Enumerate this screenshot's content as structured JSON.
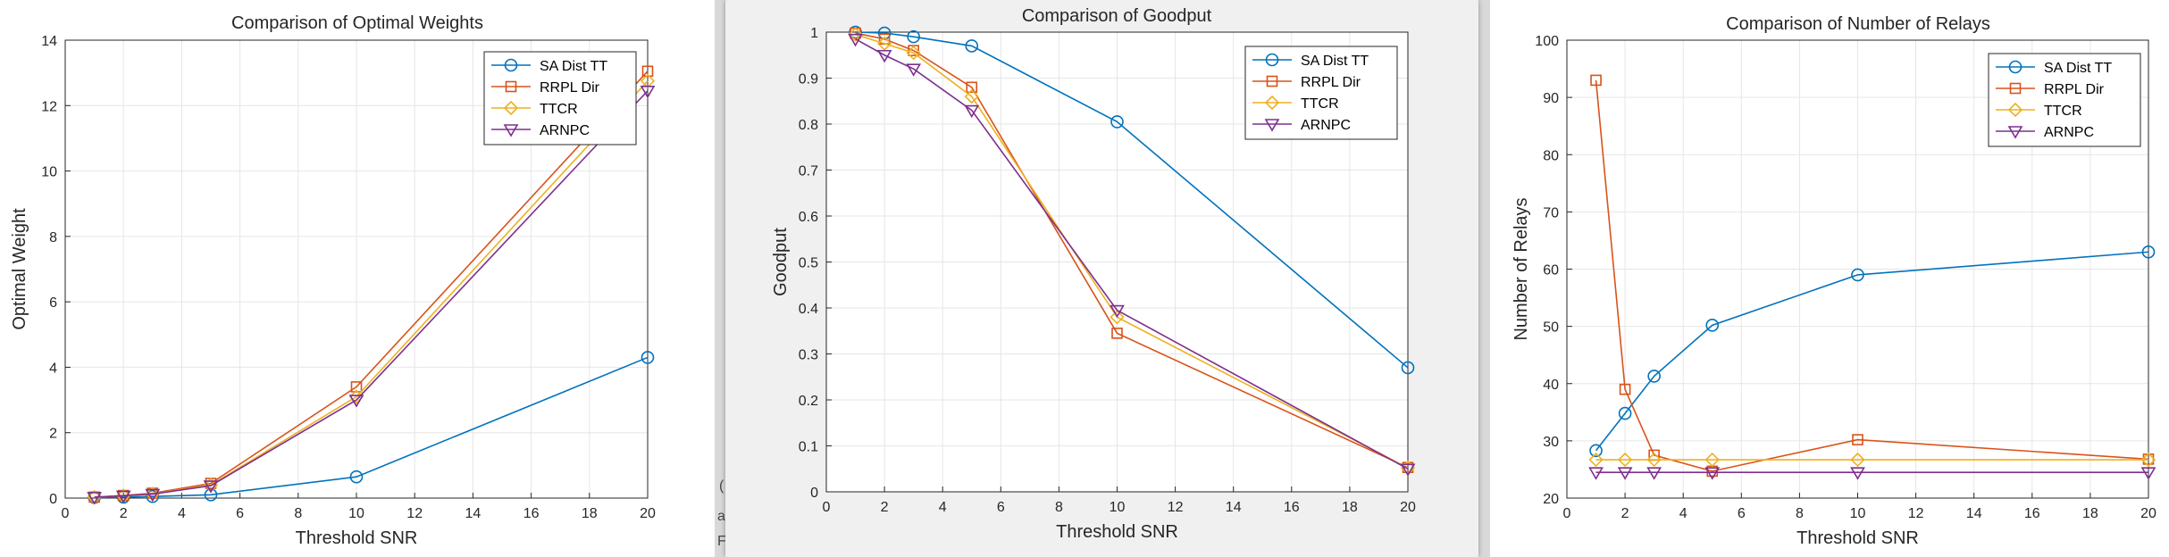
{
  "chart_data": [
    {
      "type": "line",
      "title": "Comparison of Optimal Weights",
      "xlabel": "Threshold SNR",
      "ylabel": "Optimal Weight",
      "xlim": [
        0,
        20
      ],
      "ylim": [
        0,
        14
      ],
      "xticks": [
        0,
        2,
        4,
        6,
        8,
        10,
        12,
        14,
        16,
        18,
        20
      ],
      "yticks": [
        0,
        2,
        4,
        6,
        8,
        10,
        12,
        14
      ],
      "grid": true,
      "legend_position": "top-right",
      "x": [
        1,
        2,
        3,
        5,
        10,
        20
      ],
      "series": [
        {
          "name": "SA Dist TT",
          "color": "#0072BD",
          "marker": "circle",
          "values": [
            0.02,
            0.03,
            0.05,
            0.1,
            0.65,
            4.3
          ]
        },
        {
          "name": "RRPL Dir",
          "color": "#D95319",
          "marker": "square",
          "values": [
            0.03,
            0.08,
            0.15,
            0.45,
            3.4,
            13.05
          ]
        },
        {
          "name": "TTCR",
          "color": "#EDB120",
          "marker": "diamond",
          "values": [
            0.03,
            0.07,
            0.13,
            0.4,
            3.1,
            12.75
          ]
        },
        {
          "name": "ARNPC",
          "color": "#7E2F8E",
          "marker": "triangle-down",
          "values": [
            0.03,
            0.07,
            0.12,
            0.38,
            3.0,
            12.45
          ]
        }
      ]
    },
    {
      "type": "line",
      "title": "Comparison of Goodput",
      "xlabel": "Threshold SNR",
      "ylabel": "Goodput",
      "xlim": [
        0,
        20
      ],
      "ylim": [
        0,
        1
      ],
      "xticks": [
        0,
        2,
        4,
        6,
        8,
        10,
        12,
        14,
        16,
        18,
        20
      ],
      "yticks": [
        0,
        0.1,
        0.2,
        0.3,
        0.4,
        0.5,
        0.6,
        0.7,
        0.8,
        0.9,
        1
      ],
      "grid": true,
      "legend_position": "top-right",
      "x": [
        1,
        2,
        3,
        5,
        10,
        20
      ],
      "series": [
        {
          "name": "SA Dist TT",
          "color": "#0072BD",
          "marker": "circle",
          "values": [
            1.0,
            0.998,
            0.99,
            0.97,
            0.805,
            0.27
          ]
        },
        {
          "name": "RRPL Dir",
          "color": "#D95319",
          "marker": "square",
          "values": [
            0.998,
            0.985,
            0.96,
            0.88,
            0.345,
            0.053
          ]
        },
        {
          "name": "TTCR",
          "color": "#EDB120",
          "marker": "diamond",
          "values": [
            0.995,
            0.975,
            0.955,
            0.86,
            0.38,
            0.052
          ]
        },
        {
          "name": "ARNPC",
          "color": "#7E2F8E",
          "marker": "triangle-down",
          "values": [
            0.985,
            0.95,
            0.92,
            0.83,
            0.395,
            0.05
          ]
        }
      ]
    },
    {
      "type": "line",
      "title": "Comparison of Number of Relays",
      "xlabel": "Threshold SNR",
      "ylabel": "Number of Relays",
      "xlim": [
        0,
        20
      ],
      "ylim": [
        20,
        100
      ],
      "xticks": [
        0,
        2,
        4,
        6,
        8,
        10,
        12,
        14,
        16,
        18,
        20
      ],
      "yticks": [
        20,
        30,
        40,
        50,
        60,
        70,
        80,
        90,
        100
      ],
      "grid": true,
      "legend_position": "top-right",
      "x": [
        1,
        2,
        3,
        5,
        10,
        20
      ],
      "series": [
        {
          "name": "SA Dist TT",
          "color": "#0072BD",
          "marker": "circle",
          "values": [
            28.3,
            34.8,
            41.3,
            50.2,
            59.0,
            63.0
          ]
        },
        {
          "name": "RRPL Dir",
          "color": "#D95319",
          "marker": "square",
          "values": [
            93.0,
            39.0,
            27.5,
            24.7,
            30.2,
            26.8
          ]
        },
        {
          "name": "TTCR",
          "color": "#EDB120",
          "marker": "diamond",
          "values": [
            26.7,
            26.7,
            26.7,
            26.7,
            26.7,
            26.7
          ]
        },
        {
          "name": "ARNPC",
          "color": "#7E2F8E",
          "marker": "triangle-down",
          "values": [
            24.5,
            24.5,
            24.5,
            24.5,
            24.5,
            24.5
          ]
        }
      ]
    }
  ],
  "background_fragments": {
    "left_edge_text": [
      "(",
      "a",
      "F"
    ]
  }
}
